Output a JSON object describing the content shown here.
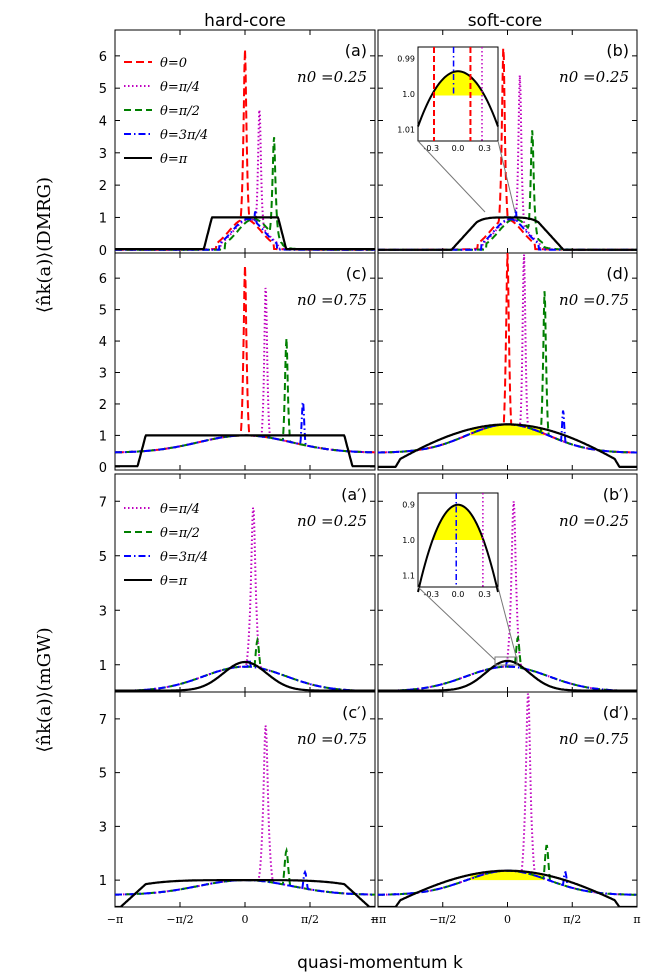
{
  "figure": {
    "col_titles": [
      "hard-core",
      "soft-core"
    ],
    "x_label": "quasi-momentum k",
    "ylabel_top": "⟨n̂k(a)⟩(DMRG)",
    "ylabel_bottom": "⟨n̂k(a)⟩(mGW)",
    "colors": {
      "theta0": "#ff0000",
      "theta_pi4": "#bf00bf",
      "theta_pi2": "#007f00",
      "theta_3pi4": "#0000ff",
      "theta_pi": "#000000",
      "highlight": "#ffff00"
    }
  },
  "legends": {
    "top": [
      "θ=0",
      "θ=π/4",
      "θ=π/2",
      "θ=3π/4",
      "θ=π"
    ],
    "bottom": [
      "θ=π/4",
      "θ=π/2",
      "θ=3π/4",
      "θ=π"
    ]
  },
  "panels": [
    {
      "label": "(a)",
      "density": "n0 =0.25"
    },
    {
      "label": "(b)",
      "density": "n0 =0.25"
    },
    {
      "label": "(c)",
      "density": "n0 =0.75"
    },
    {
      "label": "(d)",
      "density": "n0 =0.75"
    },
    {
      "label": "(a′)",
      "density": "n0 =0.25"
    },
    {
      "label": "(b′)",
      "density": "n0 =0.25"
    },
    {
      "label": "(c′)",
      "density": "n0 =0.75"
    },
    {
      "label": "(d′)",
      "density": "n0 =0.75"
    }
  ],
  "axes": {
    "x_ticks": [
      "−π",
      "−π/2",
      "0",
      "π/2",
      "π"
    ],
    "y_ticks_top_rows": [
      "0",
      "1",
      "2",
      "3",
      "4",
      "5",
      "6"
    ],
    "y_ticks_bottom_rows": [
      "1",
      "3",
      "5",
      "7"
    ],
    "inset_b": {
      "x_ticks": [
        "-0.3",
        "0.0",
        "0.3"
      ],
      "y_ticks": [
        "0.99",
        "1.0",
        "1.01"
      ]
    },
    "inset_bp": {
      "x_ticks": [
        "-0.3",
        "0.0",
        "0.3"
      ],
      "y_ticks": [
        "0.9",
        "1.0",
        "1.1"
      ]
    }
  },
  "chart_data": [
    {
      "panel": "(a)",
      "type": "line",
      "xlim": [
        -3.1416,
        3.1416
      ],
      "ylim": [
        -0.1,
        6.8
      ],
      "series": [
        {
          "name": "θ=0",
          "peak_x": 0.0,
          "peak_y": 6.2
        },
        {
          "name": "θ=π/4",
          "peak_x": 0.35,
          "peak_y": 4.4
        },
        {
          "name": "θ=π/2",
          "peak_x": 0.7,
          "peak_y": 3.5
        },
        {
          "name": "θ=3π/4",
          "peak_x": 0.25,
          "peak_y": 1.2
        },
        {
          "name": "θ=π",
          "plateau_y": 1.0,
          "plateau_x": [
            -0.8,
            0.8
          ]
        }
      ]
    },
    {
      "panel": "(b)",
      "type": "line",
      "xlim": [
        -3.1416,
        3.1416
      ],
      "ylim": [
        -0.1,
        6.8
      ],
      "series": [
        {
          "name": "θ=0",
          "peak_x": -0.1,
          "peak_y": 6.3
        },
        {
          "name": "θ=π/4",
          "peak_x": 0.3,
          "peak_y": 5.4
        },
        {
          "name": "θ=π/2",
          "peak_x": 0.6,
          "peak_y": 3.7
        },
        {
          "name": "θ=3π/4",
          "peak_x": 0.2,
          "peak_y": 1.2
        },
        {
          "name": "θ=π",
          "plateau_y": 1.0,
          "plateau_x": [
            -0.75,
            0.75
          ]
        }
      ]
    },
    {
      "panel": "(c)",
      "type": "line",
      "xlim": [
        -3.1416,
        3.1416
      ],
      "ylim": [
        -0.1,
        6.8
      ],
      "series": [
        {
          "name": "θ=0",
          "peak_x": 0.0,
          "peak_y": 6.4
        },
        {
          "name": "θ=π/4",
          "peak_x": 0.5,
          "peak_y": 5.8
        },
        {
          "name": "θ=π/2",
          "peak_x": 1.0,
          "peak_y": 4.1
        },
        {
          "name": "θ=3π/4",
          "peak_x": 1.4,
          "peak_y": 2.1
        },
        {
          "name": "θ=π",
          "plateau_y": 1.0,
          "plateau_x": [
            -2.4,
            2.4
          ]
        }
      ]
    },
    {
      "panel": "(d)",
      "type": "line",
      "xlim": [
        -3.1416,
        3.1416
      ],
      "ylim": [
        -0.1,
        6.8
      ],
      "series": [
        {
          "name": "θ=0",
          "peak_x": 0.0,
          "peak_y": 6.8
        },
        {
          "name": "θ=π/4",
          "peak_x": 0.4,
          "peak_y": 6.8
        },
        {
          "name": "θ=π/2",
          "peak_x": 0.9,
          "peak_y": 5.6
        },
        {
          "name": "θ=3π/4",
          "peak_x": 1.35,
          "peak_y": 1.8
        },
        {
          "name": "θ=π",
          "peak_x": 0.0,
          "peak_y": 1.4
        }
      ]
    },
    {
      "panel": "(a′)",
      "type": "line",
      "xlim": [
        -3.1416,
        3.1416
      ],
      "ylim": [
        0.0,
        8.0
      ],
      "series": [
        {
          "name": "θ=π/4",
          "peak_x": 0.2,
          "peak_y": 6.8
        },
        {
          "name": "θ=π/2",
          "peak_x": 0.3,
          "peak_y": 1.9
        },
        {
          "name": "θ=3π/4",
          "peak_x": 0.1,
          "peak_y": 1.2
        },
        {
          "name": "θ=π",
          "peak_x": 0.0,
          "peak_y": 1.05
        }
      ]
    },
    {
      "panel": "(b′)",
      "type": "line",
      "xlim": [
        -3.1416,
        3.1416
      ],
      "ylim": [
        0.0,
        8.0
      ],
      "series": [
        {
          "name": "θ=π/4",
          "peak_x": 0.15,
          "peak_y": 7.0
        },
        {
          "name": "θ=π/2",
          "peak_x": 0.25,
          "peak_y": 2.0
        },
        {
          "name": "θ=3π/4",
          "peak_x": 0.0,
          "peak_y": 1.2
        },
        {
          "name": "θ=π",
          "peak_x": 0.0,
          "peak_y": 1.09
        }
      ]
    },
    {
      "panel": "(c′)",
      "type": "line",
      "xlim": [
        -3.1416,
        3.1416
      ],
      "ylim": [
        0.0,
        8.0
      ],
      "series": [
        {
          "name": "θ=π/4",
          "peak_x": 0.5,
          "peak_y": 6.8
        },
        {
          "name": "θ=π/2",
          "peak_x": 1.0,
          "peak_y": 2.1
        },
        {
          "name": "θ=3π/4",
          "peak_x": 1.45,
          "peak_y": 1.3
        },
        {
          "name": "θ=π",
          "plateau_y": 1.0,
          "plateau_x": [
            -2.4,
            2.4
          ]
        }
      ]
    },
    {
      "panel": "(d′)",
      "type": "line",
      "xlim": [
        -3.1416,
        3.1416
      ],
      "ylim": [
        0.0,
        8.0
      ],
      "series": [
        {
          "name": "θ=π/4",
          "peak_x": 0.5,
          "peak_y": 8.0
        },
        {
          "name": "θ=π/2",
          "peak_x": 0.95,
          "peak_y": 2.3
        },
        {
          "name": "θ=3π/4",
          "peak_x": 1.4,
          "peak_y": 1.3
        },
        {
          "name": "θ=π",
          "peak_x": 0.0,
          "peak_y": 1.4
        }
      ]
    }
  ]
}
